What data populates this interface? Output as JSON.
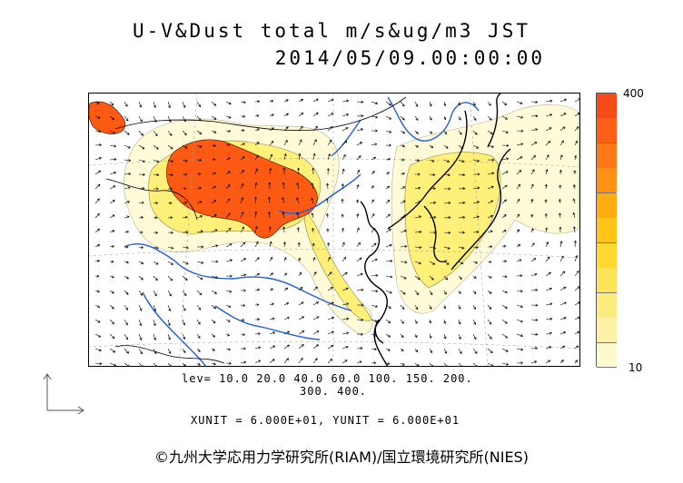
{
  "title": "U-V&Dust total m/s&ug/m3 JST",
  "datetime": "2014/05/09.00:00:00",
  "legend": {
    "max_label": "400",
    "min_label": "10",
    "colors": [
      "#fff9d0",
      "#fff2a8",
      "#ffec80",
      "#ffe45a",
      "#ffd932",
      "#ffc418",
      "#ffad10",
      "#ff9214",
      "#ff7816",
      "#ff5e18",
      "#f84a18"
    ]
  },
  "levels_line1": "lev= 10.0 20.0 40.0 60.0 100. 150. 200.",
  "levels_line2": "300. 400.",
  "units": "XUNIT = 6.000E+01, YUNIT = 6.000E+01",
  "credit": "©九州大学応用力学研究所(RIAM)/国立環境研究所(NIES)",
  "map_colors": {
    "coast": "#000000",
    "rivers": "#1f5fe0",
    "dust_low": "#fffbd8",
    "dust_mid": "#fff07a",
    "dust_high": "#ff5a14",
    "arrows": "#000000"
  }
}
